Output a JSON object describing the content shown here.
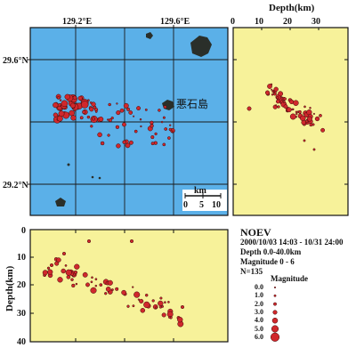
{
  "map": {
    "lon_labels": [
      "129.2°E",
      "129.6°E"
    ],
    "lat_labels": [
      "29.6°N",
      "29.2°N"
    ],
    "island_name": "悪石島",
    "scale_unit": "km",
    "scale_ticks": [
      "0",
      "5",
      "10"
    ],
    "colors": {
      "sea": "#5bb0e8",
      "land": "#2a2f2a",
      "event": "#d0282c"
    }
  },
  "depth_panel_right": {
    "title": "Depth(km)",
    "ticks": [
      "0",
      "10",
      "20",
      "30"
    ],
    "background": "#f7f29a"
  },
  "depth_panel_bottom": {
    "ylabel": "Depth(km)",
    "ticks": [
      "0",
      "10",
      "20",
      "30",
      "40"
    ],
    "background": "#f7f29a"
  },
  "info": {
    "title": "NOEV",
    "period": "2000/10/03 14:03 - 10/31 24:00",
    "depth": "Depth 0.0-40.0km",
    "magnitude": "Magnitude 0 - 6",
    "count": "N=135"
  },
  "legend": {
    "title": "Magnitude",
    "entries": [
      "0.0",
      "1.0",
      "2.0",
      "3.0",
      "4.0",
      "5.0",
      "6.0"
    ]
  }
}
